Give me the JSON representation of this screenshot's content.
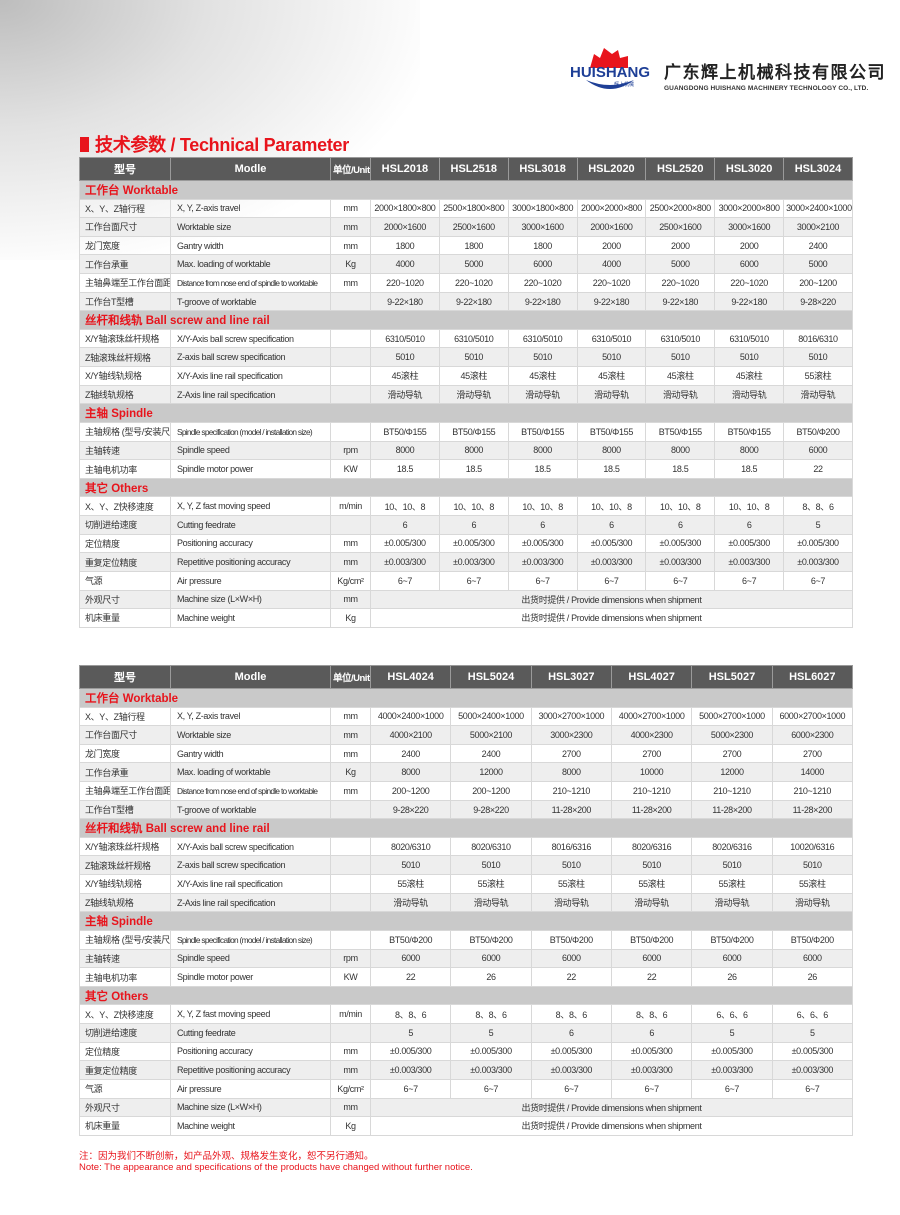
{
  "header": {
    "logo_text": "HUISHANG",
    "logo_sub": "辉上机械",
    "company_zh": "广东辉上机械科技有限公司",
    "company_en": "GUANGDONG HUISHANG MACHINERY TECHNOLOGY CO., LTD.",
    "colors": {
      "brand_red": "#e8141c",
      "brand_blue": "#1e3f96"
    }
  },
  "title": "技术参数 / Technical Parameter",
  "columns": {
    "model_zh": "型号",
    "model_en": "Modle",
    "unit": "单位/Unit"
  },
  "shipment_note": "出货时提供 / Provide dimensions when shipment",
  "sections": [
    {
      "title": "工作台 Worktable",
      "rows": [
        {
          "zh": "X、Y、Z轴行程",
          "en": "X, Y, Z-axis travel",
          "unit": "mm"
        },
        {
          "zh": "工作台面尺寸",
          "en": "Worktable size",
          "unit": "mm"
        },
        {
          "zh": "龙门宽度",
          "en": "Gantry width",
          "unit": "mm"
        },
        {
          "zh": "工作台承重",
          "en": "Max. loading of worktable",
          "unit": "Kg"
        },
        {
          "zh": "主轴鼻端至工作台面距离",
          "en": "Distance from nose end of spindle to worktable",
          "unit": "mm"
        },
        {
          "zh": "工作台T型槽",
          "en": "T-groove of worktable",
          "unit": ""
        }
      ]
    },
    {
      "title": "丝杆和线轨 Ball screw and line rail",
      "rows": [
        {
          "zh": "X/Y轴滚珠丝杆规格",
          "en": "X/Y-Axis ball screw specification",
          "unit": ""
        },
        {
          "zh": "Z轴滚珠丝杆规格",
          "en": "Z-axis ball screw specification",
          "unit": ""
        },
        {
          "zh": "X/Y轴线轨规格",
          "en": "X/Y-Axis  line rail specification",
          "unit": ""
        },
        {
          "zh": "Z轴线轨规格",
          "en": "Z-Axis line rail specification",
          "unit": ""
        }
      ]
    },
    {
      "title": "主轴 Spindle",
      "rows": [
        {
          "zh": "主轴规格 (型号/安装尺寸)",
          "en": "Spindle specification (model / installation size)",
          "unit": ""
        },
        {
          "zh": "主轴转速",
          "en": "Spindle speed",
          "unit": "rpm"
        },
        {
          "zh": "主轴电机功率",
          "en": "Spindle motor power",
          "unit": "KW"
        }
      ]
    },
    {
      "title": "其它 Others",
      "rows": [
        {
          "zh": "X、Y、Z快移速度",
          "en": "X, Y, Z fast moving speed",
          "unit": "m/min"
        },
        {
          "zh": "切削进给速度",
          "en": "Cutting feedrate",
          "unit": ""
        },
        {
          "zh": "定位精度",
          "en": "Positioning accuracy",
          "unit": "mm"
        },
        {
          "zh": "重复定位精度",
          "en": "Repetitive positioning accuracy",
          "unit": "mm"
        },
        {
          "zh": "气源",
          "en": "Air pressure",
          "unit": "Kg/cm²"
        },
        {
          "zh": "外观尺寸",
          "en": "Machine size (L×W×H)",
          "unit": "mm"
        },
        {
          "zh": "机床重量",
          "en": "Machine weight",
          "unit": "Kg"
        }
      ]
    }
  ],
  "tables": [
    {
      "models": [
        "HSL2018",
        "HSL2518",
        "HSL3018",
        "HSL2020",
        "HSL2520",
        "HSL3020",
        "HSL3024"
      ],
      "values": [
        [
          [
            "2000×1800×800",
            "2500×1800×800",
            "3000×1800×800",
            "2000×2000×800",
            "2500×2000×800",
            "3000×2000×800",
            "3000×2400×1000"
          ],
          [
            "2000×1600",
            "2500×1600",
            "3000×1600",
            "2000×1600",
            "2500×1600",
            "3000×1600",
            "3000×2100"
          ],
          [
            "1800",
            "1800",
            "1800",
            "2000",
            "2000",
            "2000",
            "2400"
          ],
          [
            "4000",
            "5000",
            "6000",
            "4000",
            "5000",
            "6000",
            "5000"
          ],
          [
            "220~1020",
            "220~1020",
            "220~1020",
            "220~1020",
            "220~1020",
            "220~1020",
            "200~1200"
          ],
          [
            "9-22×180",
            "9-22×180",
            "9-22×180",
            "9-22×180",
            "9-22×180",
            "9-22×180",
            "9-28×220"
          ]
        ],
        [
          [
            "6310/5010",
            "6310/5010",
            "6310/5010",
            "6310/5010",
            "6310/5010",
            "6310/5010",
            "8016/6310"
          ],
          [
            "5010",
            "5010",
            "5010",
            "5010",
            "5010",
            "5010",
            "5010"
          ],
          [
            "45滚柱",
            "45滚柱",
            "45滚柱",
            "45滚柱",
            "45滚柱",
            "45滚柱",
            "55滚柱"
          ],
          [
            "滑动导轨",
            "滑动导轨",
            "滑动导轨",
            "滑动导轨",
            "滑动导轨",
            "滑动导轨",
            "滑动导轨"
          ]
        ],
        [
          [
            "BT50/Φ155",
            "BT50/Φ155",
            "BT50/Φ155",
            "BT50/Φ155",
            "BT50/Φ155",
            "BT50/Φ155",
            "BT50/Φ200"
          ],
          [
            "8000",
            "8000",
            "8000",
            "8000",
            "8000",
            "8000",
            "6000"
          ],
          [
            "18.5",
            "18.5",
            "18.5",
            "18.5",
            "18.5",
            "18.5",
            "22"
          ]
        ],
        [
          [
            "10、10、8",
            "10、10、8",
            "10、10、8",
            "10、10、8",
            "10、10、8",
            "10、10、8",
            "8、8、6"
          ],
          [
            "6",
            "6",
            "6",
            "6",
            "6",
            "6",
            "5"
          ],
          [
            "±0.005/300",
            "±0.005/300",
            "±0.005/300",
            "±0.005/300",
            "±0.005/300",
            "±0.005/300",
            "±0.005/300"
          ],
          [
            "±0.003/300",
            "±0.003/300",
            "±0.003/300",
            "±0.003/300",
            "±0.003/300",
            "±0.003/300",
            "±0.003/300"
          ],
          [
            "6~7",
            "6~7",
            "6~7",
            "6~7",
            "6~7",
            "6~7",
            "6~7"
          ],
          "shipment",
          "shipment"
        ]
      ]
    },
    {
      "models": [
        "HSL4024",
        "HSL5024",
        "HSL3027",
        "HSL4027",
        "HSL5027",
        "HSL6027"
      ],
      "values": [
        [
          [
            "4000×2400×1000",
            "5000×2400×1000",
            "3000×2700×1000",
            "4000×2700×1000",
            "5000×2700×1000",
            "6000×2700×1000"
          ],
          [
            "4000×2100",
            "5000×2100",
            "3000×2300",
            "4000×2300",
            "5000×2300",
            "6000×2300"
          ],
          [
            "2400",
            "2400",
            "2700",
            "2700",
            "2700",
            "2700"
          ],
          [
            "8000",
            "12000",
            "8000",
            "10000",
            "12000",
            "14000"
          ],
          [
            "200~1200",
            "200~1200",
            "210~1210",
            "210~1210",
            "210~1210",
            "210~1210"
          ],
          [
            "9-28×220",
            "9-28×220",
            "11-28×200",
            "11-28×200",
            "11-28×200",
            "11-28×200"
          ]
        ],
        [
          [
            "8020/6310",
            "8020/6310",
            "8016/6316",
            "8020/6316",
            "8020/6316",
            "10020/6316"
          ],
          [
            "5010",
            "5010",
            "5010",
            "5010",
            "5010",
            "5010"
          ],
          [
            "55滚柱",
            "55滚柱",
            "55滚柱",
            "55滚柱",
            "55滚柱",
            "55滚柱"
          ],
          [
            "滑动导轨",
            "滑动导轨",
            "滑动导轨",
            "滑动导轨",
            "滑动导轨",
            "滑动导轨"
          ]
        ],
        [
          [
            "BT50/Φ200",
            "BT50/Φ200",
            "BT50/Φ200",
            "BT50/Φ200",
            "BT50/Φ200",
            "BT50/Φ200"
          ],
          [
            "6000",
            "6000",
            "6000",
            "6000",
            "6000",
            "6000"
          ],
          [
            "22",
            "26",
            "22",
            "22",
            "26",
            "26"
          ]
        ],
        [
          [
            "8、8、6",
            "8、8、6",
            "8、8、6",
            "8、8、6",
            "6、6、6",
            "6、6、6"
          ],
          [
            "5",
            "5",
            "6",
            "6",
            "5",
            "5"
          ],
          [
            "±0.005/300",
            "±0.005/300",
            "±0.005/300",
            "±0.005/300",
            "±0.005/300",
            "±0.005/300"
          ],
          [
            "±0.003/300",
            "±0.003/300",
            "±0.003/300",
            "±0.003/300",
            "±0.003/300",
            "±0.003/300"
          ],
          [
            "6~7",
            "6~7",
            "6~7",
            "6~7",
            "6~7",
            "6~7"
          ],
          "shipment",
          "shipment"
        ]
      ]
    }
  ],
  "footnote": {
    "zh": "注：因为我们不断创新，如产品外观、规格发生变化，恕不另行通知。",
    "en": "Note: The appearance and specifications of the products have changed without further notice."
  }
}
